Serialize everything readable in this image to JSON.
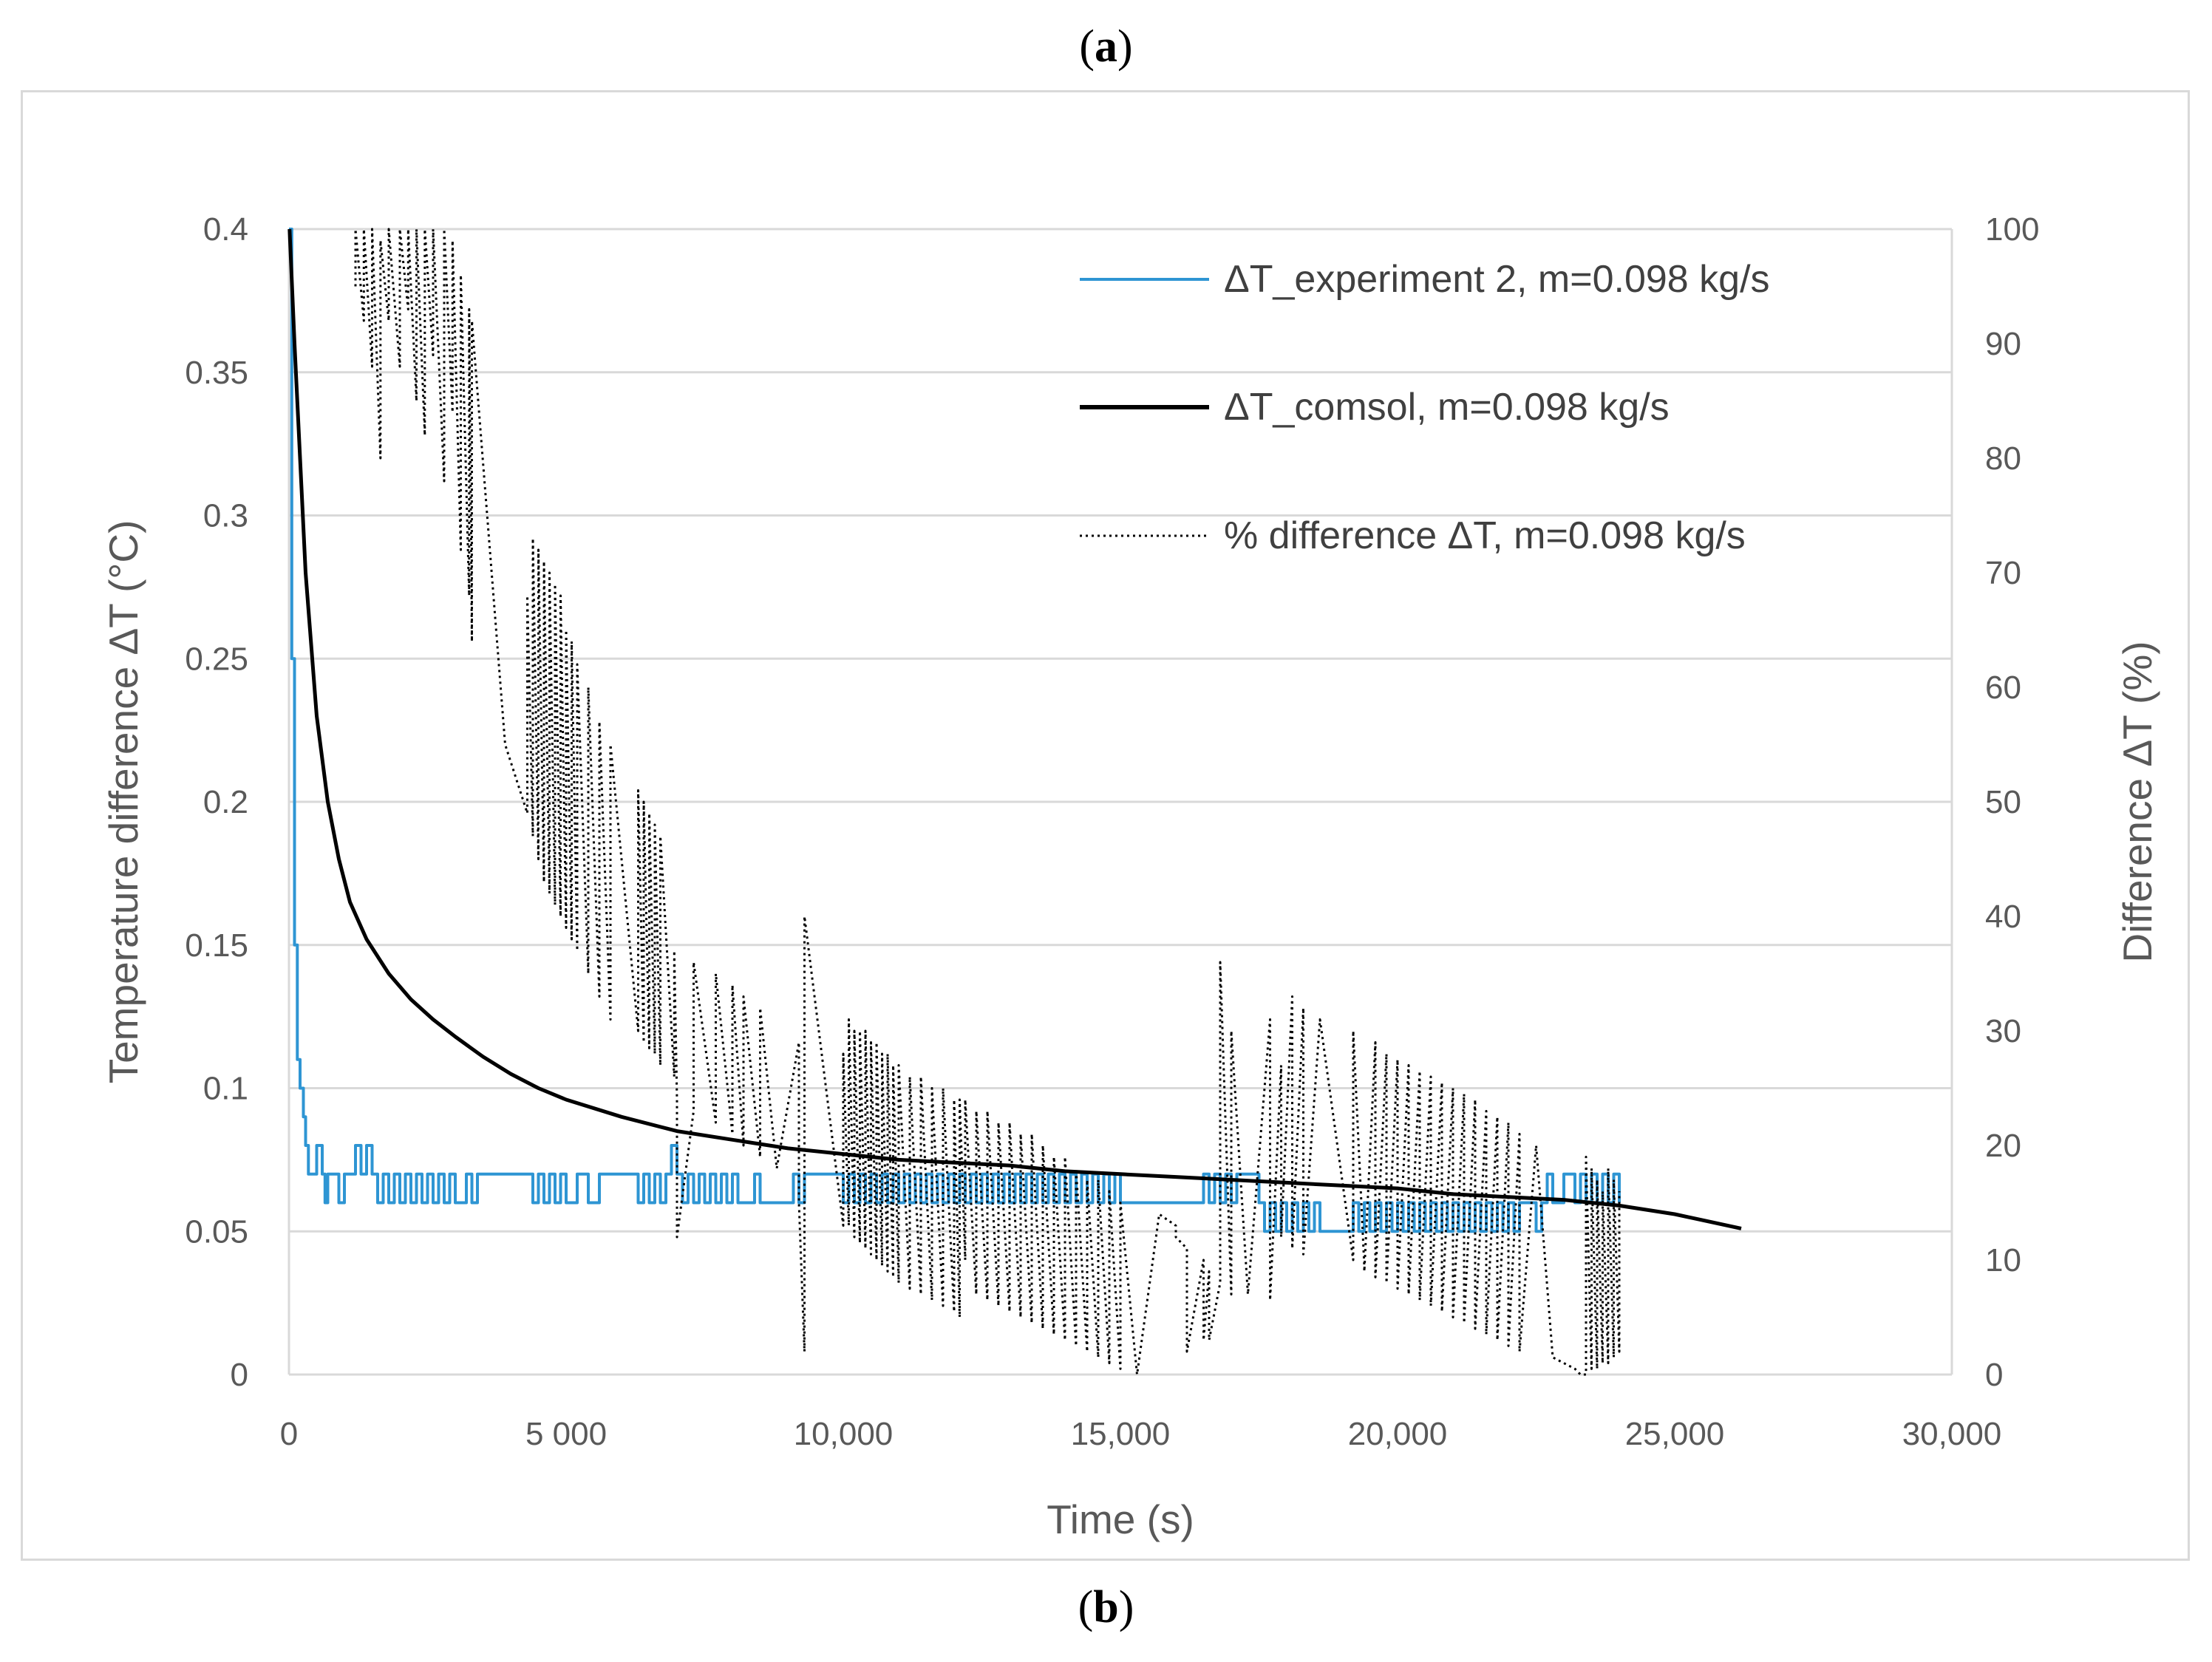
{
  "panel_labels": {
    "top": "a",
    "bottom": "b"
  },
  "colors": {
    "experiment": "#2e95d3",
    "comsol": "#000000",
    "diff": "#000000",
    "grid": "#d9d9d9",
    "axis_text": "#595959"
  },
  "chart_data": {
    "type": "line",
    "xlabel": "Time (s)",
    "ylabel_left": "Temperature difference ΔT (°C)",
    "ylabel_right": "Difference ΔT (%)",
    "xlim": [
      0,
      30000
    ],
    "ylim_left": [
      0,
      0.4
    ],
    "ylim_right": [
      0,
      100
    ],
    "grid": "horizontal",
    "legend_position": "top-right",
    "x_ticks": [
      {
        "v": 0,
        "label": "0"
      },
      {
        "v": 5000,
        "label": "5 000"
      },
      {
        "v": 10000,
        "label": "10,000"
      },
      {
        "v": 15000,
        "label": "15,000"
      },
      {
        "v": 20000,
        "label": "20,000"
      },
      {
        "v": 25000,
        "label": "25,000"
      },
      {
        "v": 30000,
        "label": "30,000"
      }
    ],
    "y_left_ticks": [
      {
        "v": 0,
        "label": "0"
      },
      {
        "v": 0.05,
        "label": "0.05"
      },
      {
        "v": 0.1,
        "label": "0.1"
      },
      {
        "v": 0.15,
        "label": "0.15"
      },
      {
        "v": 0.2,
        "label": "0.2"
      },
      {
        "v": 0.25,
        "label": "0.25"
      },
      {
        "v": 0.3,
        "label": "0.3"
      },
      {
        "v": 0.35,
        "label": "0.35"
      },
      {
        "v": 0.4,
        "label": "0.4"
      }
    ],
    "y_right_ticks": [
      {
        "v": 0,
        "label": "0"
      },
      {
        "v": 10,
        "label": "10"
      },
      {
        "v": 20,
        "label": "20"
      },
      {
        "v": 30,
        "label": "30"
      },
      {
        "v": 40,
        "label": "40"
      },
      {
        "v": 50,
        "label": "50"
      },
      {
        "v": 60,
        "label": "60"
      },
      {
        "v": 70,
        "label": "70"
      },
      {
        "v": 80,
        "label": "80"
      },
      {
        "v": 90,
        "label": "90"
      },
      {
        "v": 100,
        "label": "100"
      }
    ],
    "series": [
      {
        "name": "ΔT_experiment 2, m=0.098 kg/s",
        "axis": "left",
        "style": "solid",
        "x": [
          0,
          50,
          100,
          150,
          200,
          260,
          300,
          350,
          500,
          600,
          650,
          700,
          900,
          1000,
          1200,
          1300,
          1400,
          1500,
          1600,
          1700,
          1800,
          1900,
          2000,
          2100,
          2200,
          2300,
          2400,
          2500,
          2600,
          2700,
          2800,
          2900,
          3000,
          3200,
          3300,
          3400,
          4400,
          4500,
          4600,
          4700,
          4800,
          4900,
          5000,
          5200,
          5400,
          5600,
          6300,
          6400,
          6500,
          6600,
          6700,
          6800,
          6900,
          7000,
          7100,
          7200,
          7300,
          7400,
          7500,
          7600,
          7700,
          7800,
          7900,
          8000,
          8100,
          8400,
          8500,
          9100,
          9200,
          9300,
          10000,
          10100,
          10200,
          10300,
          10400,
          10500,
          10600,
          10700,
          10800,
          10900,
          11000,
          11100,
          11200,
          11300,
          11400,
          11500,
          11600,
          11700,
          11800,
          11900,
          12000,
          12100,
          12200,
          12300,
          12400,
          12500,
          12600,
          12700,
          12800,
          12900,
          13000,
          13100,
          13200,
          13300,
          13400,
          13500,
          13600,
          13700,
          13800,
          13900,
          14000,
          14100,
          14200,
          14300,
          14400,
          14500,
          14600,
          14700,
          14800,
          14900,
          15000,
          16500,
          16600,
          16700,
          16800,
          16900,
          17000,
          17100,
          17500,
          17600,
          17700,
          17800,
          17900,
          18000,
          18100,
          18200,
          18300,
          18400,
          18500,
          18600,
          19200,
          19300,
          19400,
          19500,
          19600,
          19700,
          19800,
          19900,
          20000,
          20100,
          20200,
          20300,
          20400,
          20500,
          20600,
          20700,
          20800,
          20900,
          21000,
          21100,
          21200,
          21300,
          21400,
          21500,
          21600,
          21700,
          21800,
          21900,
          22000,
          22100,
          22200,
          22500,
          22600,
          22700,
          22800,
          23000,
          23200,
          23300,
          23400,
          23500,
          23600,
          23700,
          23800,
          23900,
          24000
        ],
        "values": [
          0.4,
          0.25,
          0.15,
          0.11,
          0.1,
          0.09,
          0.08,
          0.07,
          0.08,
          0.07,
          0.06,
          0.07,
          0.06,
          0.07,
          0.08,
          0.07,
          0.08,
          0.07,
          0.06,
          0.07,
          0.06,
          0.07,
          0.06,
          0.07,
          0.06,
          0.07,
          0.06,
          0.07,
          0.06,
          0.07,
          0.06,
          0.07,
          0.06,
          0.07,
          0.06,
          0.07,
          0.06,
          0.07,
          0.06,
          0.07,
          0.06,
          0.07,
          0.06,
          0.07,
          0.06,
          0.07,
          0.06,
          0.07,
          0.06,
          0.07,
          0.06,
          0.07,
          0.08,
          0.07,
          0.06,
          0.07,
          0.06,
          0.07,
          0.06,
          0.07,
          0.06,
          0.07,
          0.06,
          0.07,
          0.06,
          0.07,
          0.06,
          0.07,
          0.06,
          0.07,
          0.06,
          0.07,
          0.06,
          0.07,
          0.06,
          0.07,
          0.06,
          0.07,
          0.06,
          0.07,
          0.06,
          0.07,
          0.06,
          0.07,
          0.06,
          0.07,
          0.06,
          0.07,
          0.06,
          0.07,
          0.06,
          0.07,
          0.06,
          0.07,
          0.06,
          0.07,
          0.06,
          0.07,
          0.06,
          0.07,
          0.06,
          0.07,
          0.06,
          0.07,
          0.06,
          0.07,
          0.06,
          0.07,
          0.06,
          0.07,
          0.06,
          0.07,
          0.06,
          0.07,
          0.06,
          0.07,
          0.06,
          0.07,
          0.06,
          0.07,
          0.06,
          0.07,
          0.06,
          0.07,
          0.06,
          0.07,
          0.06,
          0.07,
          0.06,
          0.05,
          0.06,
          0.05,
          0.06,
          0.05,
          0.06,
          0.05,
          0.06,
          0.05,
          0.06,
          0.05,
          0.06,
          0.05,
          0.06,
          0.05,
          0.06,
          0.05,
          0.06,
          0.05,
          0.06,
          0.05,
          0.06,
          0.05,
          0.06,
          0.05,
          0.06,
          0.05,
          0.06,
          0.05,
          0.06,
          0.05,
          0.06,
          0.05,
          0.06,
          0.05,
          0.06,
          0.05,
          0.06,
          0.05,
          0.06,
          0.05,
          0.06,
          0.05,
          0.06,
          0.07,
          0.06,
          0.07,
          0.06,
          0.07,
          0.06,
          0.07,
          0.06,
          0.07,
          0.06,
          0.07,
          0.06
        ]
      },
      {
        "name": "ΔT_comsol, m=0.098 kg/s",
        "axis": "left",
        "style": "solid",
        "x": [
          10,
          100,
          200,
          300,
          500,
          700,
          900,
          1100,
          1400,
          1800,
          2200,
          2600,
          3000,
          3500,
          4000,
          4500,
          5000,
          6000,
          7000,
          8000,
          9000,
          10000,
          11000,
          12000,
          13000,
          14000,
          15000,
          16000,
          17000,
          18000,
          19000,
          20000,
          21000,
          22000,
          23000,
          24000,
          25000,
          26200
        ],
        "values": [
          0.4,
          0.36,
          0.32,
          0.28,
          0.23,
          0.2,
          0.18,
          0.165,
          0.152,
          0.14,
          0.131,
          0.124,
          0.118,
          0.111,
          0.105,
          0.1,
          0.096,
          0.09,
          0.085,
          0.082,
          0.079,
          0.077,
          0.075,
          0.074,
          0.073,
          0.071,
          0.07,
          0.069,
          0.068,
          0.067,
          0.066,
          0.065,
          0.063,
          0.062,
          0.061,
          0.059,
          0.056,
          0.051
        ]
      },
      {
        "name": "% difference ΔT, m=0.098 kg/s",
        "axis": "right",
        "style": "dotted",
        "x": [
          1200,
          1200,
          1350,
          1350,
          1500,
          1500,
          1650,
          1650,
          1800,
          1800,
          2000,
          2000,
          2150,
          2150,
          2300,
          2300,
          2450,
          2450,
          2600,
          2600,
          2800,
          2800,
          2950,
          2950,
          3100,
          3100,
          3250,
          3250,
          3300,
          3300,
          3900,
          4100,
          4300,
          4300,
          4400,
          4400,
          4500,
          4500,
          4600,
          4600,
          4700,
          4700,
          4800,
          4800,
          4900,
          4900,
          5000,
          5000,
          5100,
          5100,
          5200,
          5200,
          5400,
          5400,
          5600,
          5600,
          5800,
          5800,
          6300,
          6300,
          6400,
          6400,
          6500,
          6500,
          6600,
          6600,
          6700,
          6700,
          6950,
          6950,
          7000,
          7000,
          7300,
          7300,
          7700,
          7700,
          8000,
          8000,
          8200,
          8200,
          8500,
          8500,
          8800,
          9200,
          9200,
          9300,
          9300,
          10000,
          10000,
          10100,
          10100,
          10200,
          10200,
          10300,
          10300,
          10400,
          10400,
          10500,
          10500,
          10600,
          10600,
          10700,
          10700,
          10800,
          10800,
          10900,
          10900,
          11000,
          11000,
          11200,
          11200,
          11400,
          11400,
          11600,
          11600,
          11800,
          11800,
          12000,
          12000,
          12100,
          12100,
          12200,
          12200,
          12400,
          12400,
          12600,
          12600,
          12800,
          12800,
          13000,
          13000,
          13200,
          13200,
          13400,
          13400,
          13600,
          13600,
          13800,
          13800,
          14000,
          14000,
          14200,
          14200,
          14400,
          14400,
          14600,
          14600,
          14800,
          14800,
          15000,
          15000,
          15300,
          15700,
          16000,
          16000,
          16200,
          16200,
          16500,
          16500,
          16600,
          16600,
          16800,
          16800,
          17000,
          17000,
          17300,
          17700,
          17700,
          17900,
          17900,
          18100,
          18100,
          18300,
          18300,
          18600,
          19200,
          19200,
          19400,
          19400,
          19600,
          19600,
          19800,
          19800,
          20000,
          20000,
          20200,
          20200,
          20400,
          20400,
          20600,
          20600,
          20800,
          20800,
          21000,
          21000,
          21200,
          21200,
          21400,
          21400,
          21600,
          21600,
          21800,
          21800,
          22000,
          22000,
          22200,
          22200,
          22500,
          22800,
          23000,
          23200,
          23300,
          23400,
          23400,
          23500,
          23500,
          23600,
          23600,
          23700,
          23700,
          23800,
          23800,
          23900,
          23900,
          24000,
          24000
        ],
        "values": [
          95,
          100,
          92,
          100,
          88,
          100,
          80,
          99,
          92,
          100,
          88,
          100,
          93,
          100,
          85,
          100,
          82,
          100,
          89,
          100,
          78,
          100,
          84,
          99,
          72,
          96,
          68,
          93,
          64,
          92,
          55,
          52,
          49,
          68,
          47,
          73,
          45,
          72,
          43,
          71,
          42,
          70,
          41,
          69,
          40,
          68,
          39,
          65,
          38,
          64,
          37,
          62,
          35,
          60,
          33,
          57,
          31,
          55,
          30,
          51,
          29,
          50,
          28.5,
          49,
          28,
          48,
          27,
          47,
          26,
          37,
          24,
          12,
          23,
          36,
          22,
          35,
          21,
          34,
          20,
          33,
          19,
          32,
          18,
          29,
          15,
          2,
          40,
          13,
          28,
          13,
          31,
          12,
          30,
          11.5,
          30,
          11,
          30,
          10.5,
          29,
          10,
          29,
          9.5,
          28,
          9,
          28,
          8.5,
          27,
          8,
          27,
          7.5,
          26,
          7,
          26,
          6.5,
          25,
          6,
          25,
          5.5,
          24,
          5,
          24,
          10,
          24,
          7,
          23,
          6.5,
          23,
          6,
          22,
          5.5,
          22,
          5,
          21,
          4.5,
          21,
          4,
          20,
          3.5,
          19,
          3,
          19,
          2.5,
          18,
          2,
          17,
          1.5,
          17,
          1,
          16,
          0.5,
          15,
          0,
          14,
          13,
          12,
          11,
          2,
          10,
          3,
          9,
          3,
          8,
          36,
          7,
          30,
          7,
          31,
          6.5,
          27,
          12,
          33,
          11,
          32,
          10.5,
          31,
          10,
          30,
          9.5,
          9,
          29,
          8.5,
          28,
          8,
          27.5,
          7.5,
          27,
          7,
          26.5,
          6.5,
          26,
          6,
          25.5,
          5.5,
          25,
          5,
          24.5,
          4.5,
          24,
          4,
          23,
          3.5,
          22.5,
          3,
          22,
          2.5,
          21,
          2,
          20,
          1.5,
          1,
          0.5,
          0,
          0,
          19,
          0.5,
          18,
          0.5,
          17,
          1,
          16,
          1,
          18,
          1.5,
          17,
          2,
          16
        ]
      }
    ]
  }
}
